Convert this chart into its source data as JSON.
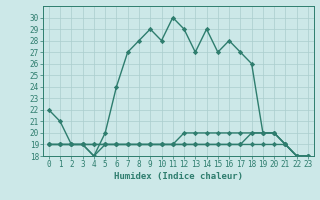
{
  "xlabel": "Humidex (Indice chaleur)",
  "x_values": [
    0,
    1,
    2,
    3,
    4,
    5,
    6,
    7,
    8,
    9,
    10,
    11,
    12,
    13,
    14,
    15,
    16,
    17,
    18,
    19,
    20,
    21,
    22,
    23
  ],
  "line1": [
    22,
    21,
    19,
    19,
    18,
    20,
    24,
    27,
    28,
    29,
    28,
    30,
    29,
    27,
    29,
    27,
    28,
    27,
    26,
    20,
    20,
    19,
    18,
    18
  ],
  "line2": [
    19,
    19,
    19,
    19,
    19,
    19,
    19,
    19,
    19,
    19,
    19,
    19,
    19,
    19,
    19,
    19,
    19,
    19,
    20,
    20,
    20,
    19,
    18,
    18
  ],
  "line3": [
    19,
    19,
    19,
    19,
    19,
    19,
    19,
    19,
    19,
    19,
    19,
    19,
    20,
    20,
    20,
    20,
    20,
    20,
    20,
    20,
    20,
    19,
    18,
    18
  ],
  "line4": [
    19,
    19,
    19,
    19,
    18,
    19,
    19,
    19,
    19,
    19,
    19,
    19,
    19,
    19,
    19,
    19,
    19,
    19,
    19,
    19,
    19,
    19,
    18,
    18
  ],
  "line_color": "#2e7d6e",
  "bg_color": "#cce8e8",
  "grid_color": "#aacece",
  "ylim": [
    18,
    31
  ],
  "yticks": [
    18,
    19,
    20,
    21,
    22,
    23,
    24,
    25,
    26,
    27,
    28,
    29,
    30
  ],
  "xticks": [
    0,
    1,
    2,
    3,
    4,
    5,
    6,
    7,
    8,
    9,
    10,
    11,
    12,
    13,
    14,
    15,
    16,
    17,
    18,
    19,
    20,
    21,
    22,
    23
  ],
  "marker": "D",
  "markersize": 2.2,
  "linewidth": 1.0,
  "tick_fontsize": 5.5,
  "xlabel_fontsize": 6.5
}
